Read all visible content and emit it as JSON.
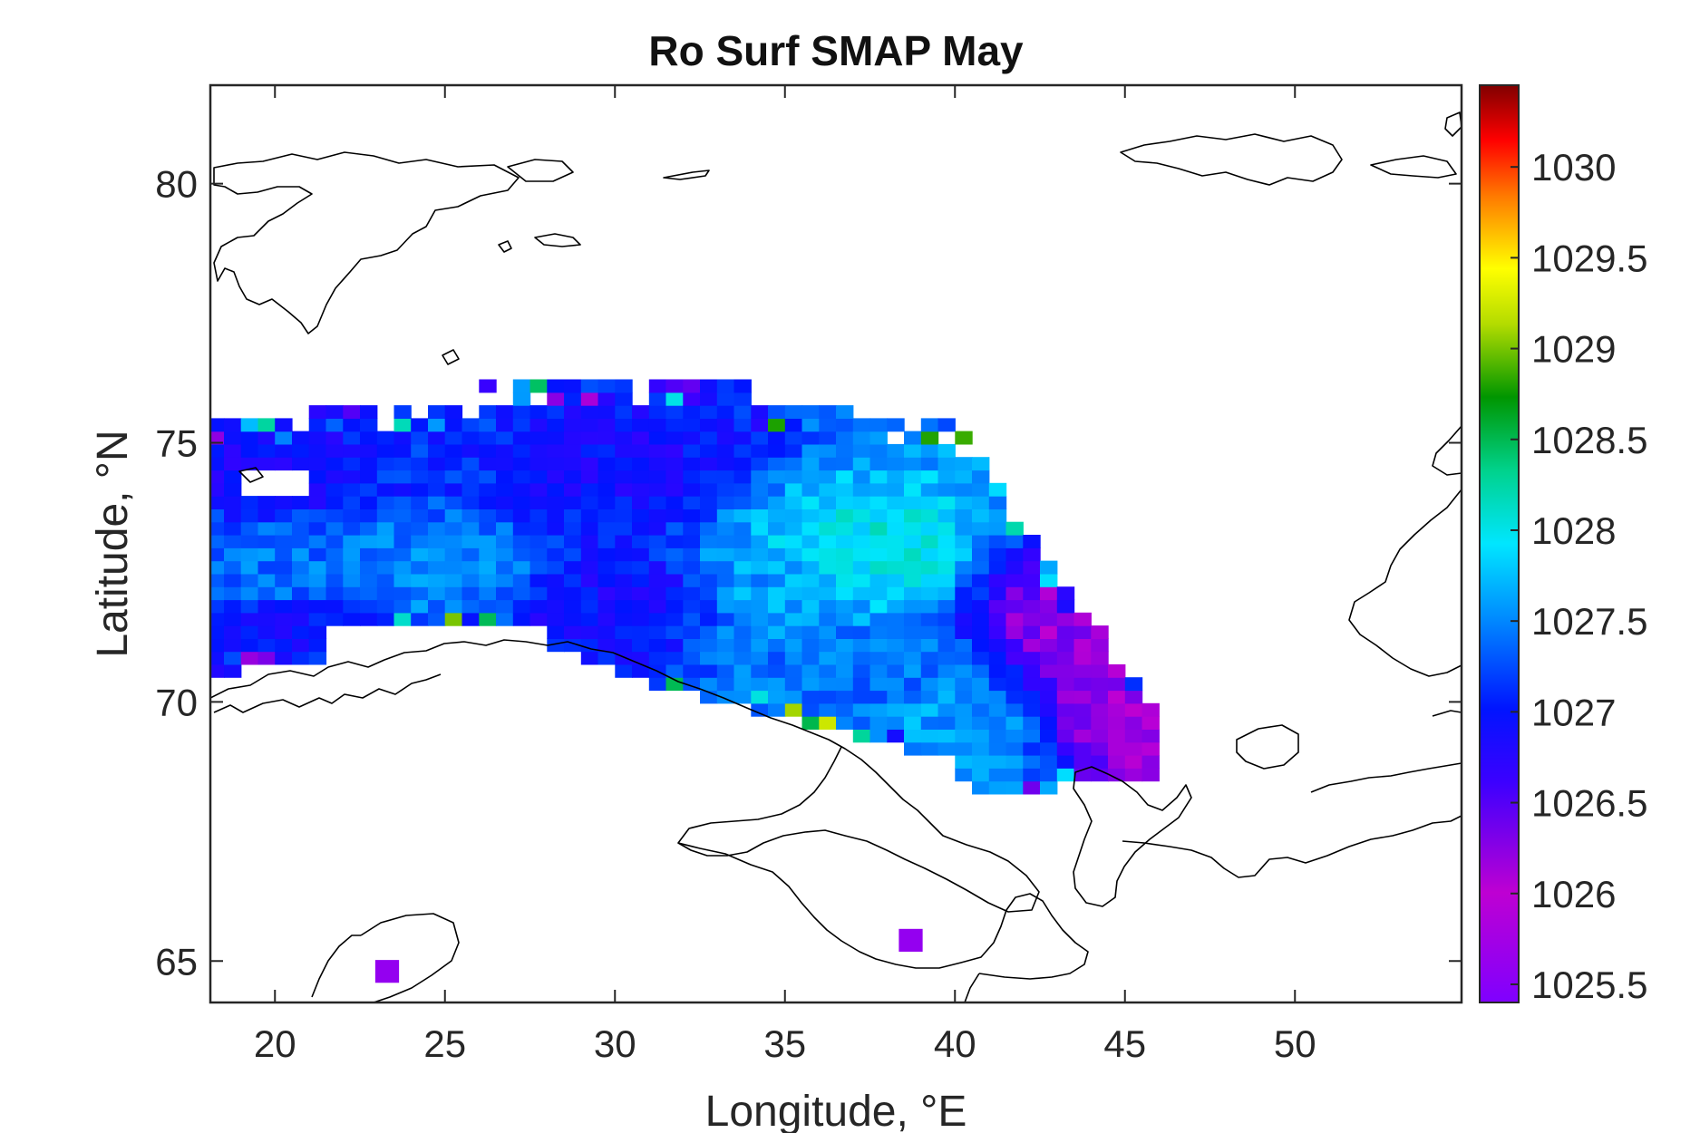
{
  "chart_data": {
    "type": "heatmap",
    "title": "Ro Surf SMAP May",
    "xlabel": "Longitude, °E",
    "ylabel": "Latitude, °N",
    "xlim": [
      18.1,
      54.9
    ],
    "ylim": [
      64.2,
      81.9
    ],
    "xticks": [
      20,
      25,
      30,
      35,
      40,
      45,
      50
    ],
    "yticks": [
      65,
      70,
      75,
      80
    ],
    "xtick_labels": [
      "20",
      "25",
      "30",
      "35",
      "40",
      "45",
      "50"
    ],
    "ytick_labels": [
      "65",
      "70",
      "75",
      "80"
    ],
    "colorbar": {
      "colormap": "jet-like (violet → blue → cyan → green → yellow → red → dark red)",
      "range": [
        1025.4,
        1030.45
      ],
      "ticks": [
        1025.5,
        1026,
        1026.5,
        1027,
        1027.5,
        1028,
        1028.5,
        1029,
        1029.5,
        1030
      ],
      "tick_labels": [
        "1025.5",
        "1026",
        "1026.5",
        "1027",
        "1027.5",
        "1028",
        "1028.5",
        "1029",
        "1029.5",
        "1030"
      ]
    },
    "grid": false,
    "coastline_color": "#000000",
    "field_description_points": [
      {
        "lon": 20,
        "lat": 74.6,
        "value": 1026.9
      },
      {
        "lon": 20,
        "lat": 72.5,
        "value": 1027.4
      },
      {
        "lon": 20,
        "lat": 71.3,
        "value": 1026.9
      },
      {
        "lon": 25,
        "lat": 75.0,
        "value": 1027.1
      },
      {
        "lon": 25,
        "lat": 72.6,
        "value": 1027.5
      },
      {
        "lon": 30,
        "lat": 74.5,
        "value": 1026.9
      },
      {
        "lon": 30,
        "lat": 72.0,
        "value": 1026.9
      },
      {
        "lon": 35,
        "lat": 72.3,
        "value": 1027.6
      },
      {
        "lon": 37,
        "lat": 72.8,
        "value": 1028.0
      },
      {
        "lon": 38,
        "lat": 70.5,
        "value": 1027.4
      },
      {
        "lon": 40,
        "lat": 69.5,
        "value": 1027.6
      },
      {
        "lon": 44,
        "lat": 71.5,
        "value": 1026.2
      },
      {
        "lon": 45.5,
        "lat": 69.8,
        "value": 1026.1
      }
    ],
    "isolated_cells": [
      {
        "lon": 23.3,
        "lat": 64.8,
        "value": 1025.6
      },
      {
        "lon": 38.7,
        "lat": 65.4,
        "value": 1025.6
      }
    ]
  }
}
